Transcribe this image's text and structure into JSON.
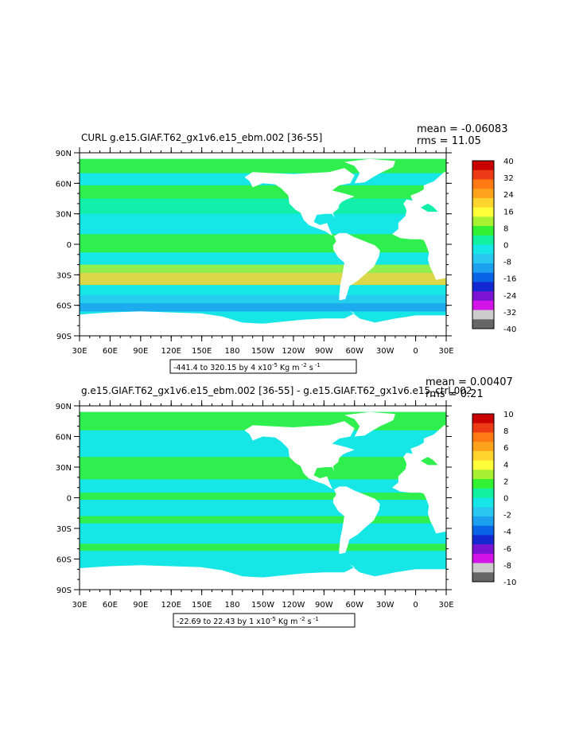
{
  "chart_data": [
    {
      "type": "heatmap",
      "title": "CURL g.e15.GIAF.T62_gx1v6.e15_ebm.002 [36-55]",
      "stats": {
        "mean": "mean = -0.06083",
        "rms": "rms = 11.05"
      },
      "range_label": "-441.4 to 320.15 by 4 x10",
      "units_tail": " Kg m",
      "units_tail2": " s",
      "exp_minus5": "-5",
      "exp_minus2": "-2",
      "exp_minus1": "-1",
      "x_ticks": [
        "30E",
        "60E",
        "90E",
        "120E",
        "150E",
        "180",
        "150W",
        "120W",
        "90W",
        "60W",
        "30W",
        "0",
        "30E"
      ],
      "y_ticks": [
        "90N",
        "60N",
        "30N",
        "0",
        "30S",
        "60S",
        "90S"
      ],
      "colorbar": {
        "labels": [
          "40",
          "32",
          "24",
          "16",
          "8",
          "0",
          "-8",
          "-16",
          "-24",
          "-32",
          "-40"
        ],
        "colors": [
          "#c80000",
          "#ec3a16",
          "#ff7a12",
          "#ffa21c",
          "#ffd42c",
          "#ffff3a",
          "#a8f032",
          "#32f032",
          "#12f0a0",
          "#16e6e6",
          "#28c8f0",
          "#1ea0f0",
          "#0a64e6",
          "#1428d2",
          "#7a14d2",
          "#d214e6",
          "#cccccc",
          "#666666"
        ]
      },
      "fields": {
        "ocean_base": "#16e6e6",
        "land": "#ffffff"
      }
    },
    {
      "type": "heatmap",
      "title": "g.e15.GIAF.T62_gx1v6.e15_ebm.002 [36-55] - g.e15.GIAF.T62_gx1v6.e15_ctrl.002",
      "stats": {
        "mean": "mean = 0.00407",
        "rms": "rms = 0.21"
      },
      "range_label": "-22.69 to 22.43 by 1 x10",
      "units_tail": " Kg m",
      "units_tail2": " s",
      "exp_minus5": "-5",
      "exp_minus2": "-2",
      "exp_minus1": "-1",
      "x_ticks": [
        "30E",
        "60E",
        "90E",
        "120E",
        "150E",
        "180",
        "150W",
        "120W",
        "90W",
        "60W",
        "30W",
        "0",
        "30E"
      ],
      "y_ticks": [
        "90N",
        "60N",
        "30N",
        "0",
        "30S",
        "60S",
        "90S"
      ],
      "colorbar": {
        "labels": [
          "10",
          "8",
          "6",
          "4",
          "2",
          "0",
          "-2",
          "-4",
          "-6",
          "-8",
          "-10"
        ],
        "colors": [
          "#c80000",
          "#ec3a16",
          "#ff7a12",
          "#ffa21c",
          "#ffd42c",
          "#ffff3a",
          "#a8f032",
          "#32f032",
          "#12f0a0",
          "#16e6e6",
          "#28c8f0",
          "#1ea0f0",
          "#0a64e6",
          "#1428d2",
          "#7a14d2",
          "#d214e6",
          "#cccccc",
          "#666666"
        ]
      },
      "fields": {
        "ocean_base": "#16e6e6",
        "land": "#ffffff"
      }
    }
  ]
}
